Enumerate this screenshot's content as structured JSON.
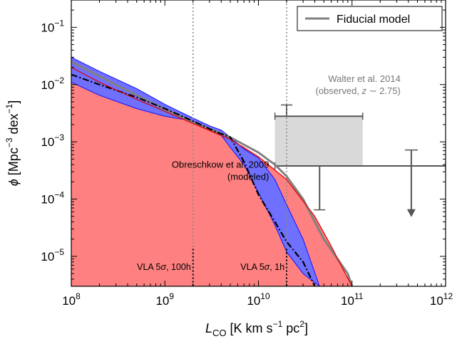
{
  "chart_data": {
    "type": "line",
    "xscale": "log",
    "yscale": "log",
    "xlim": [
      100000000,
      1000000000000
    ],
    "ylim": [
      3e-06,
      0.3
    ],
    "grid": false,
    "legend": {
      "position": "top-right",
      "entries": [
        {
          "label": "Fiducial model",
          "color": "#808080"
        }
      ]
    },
    "x_tick_labels": [
      {
        "value": 100000000,
        "base": "10",
        "exp": "8"
      },
      {
        "value": 1000000000,
        "base": "10",
        "exp": "9"
      },
      {
        "value": 10000000000,
        "base": "10",
        "exp": "10"
      },
      {
        "value": 100000000000,
        "base": "10",
        "exp": "11"
      },
      {
        "value": 1000000000000,
        "base": "10",
        "exp": "12"
      }
    ],
    "y_tick_labels": [
      {
        "value": 1e-05,
        "base": "10",
        "exp": "−5"
      },
      {
        "value": 0.0001,
        "base": "10",
        "exp": "−4"
      },
      {
        "value": 0.001,
        "base": "10",
        "exp": "−3"
      },
      {
        "value": 0.01,
        "base": "10",
        "exp": "−2"
      },
      {
        "value": 0.1,
        "base": "10",
        "exp": "−1"
      }
    ],
    "xlabel": {
      "main": "L",
      "sub": "CO",
      "rest": " [K km s",
      "sup1": "−1",
      "rest2": " pc",
      "sup2": "2",
      "end": "]"
    },
    "ylabel": {
      "phi": "ϕ",
      "pre": " [Mpc",
      "sup1": "−3",
      "mid": " dex",
      "sup2": "−1",
      "end": "]"
    },
    "series": [
      {
        "name": "Fiducial model",
        "style": "solid",
        "color": "#808080",
        "x": [
          100000000,
          200000000,
          500000000,
          1000000000,
          2000000000,
          5000000000,
          10000000000,
          15000000000,
          20000000000,
          30000000000,
          50000000000,
          70000000000,
          90000000000,
          100000000000
        ],
        "y": [
          0.025,
          0.014,
          0.0065,
          0.0037,
          0.0022,
          0.0012,
          0.00065,
          0.0004,
          0.00025,
          0.0001,
          2e-05,
          9e-06,
          5e-06,
          3e-06
        ]
      },
      {
        "style": "dashdot",
        "color": "#000000",
        "x": [
          100000000,
          200000000,
          500000000,
          1000000000,
          2000000000,
          3500000000,
          5000000000,
          7000000000,
          10000000000,
          15000000000,
          20000000000,
          30000000000,
          40000000000
        ],
        "y": [
          0.015,
          0.01,
          0.006,
          0.0038,
          0.0023,
          0.0015,
          0.0012,
          0.00045,
          0.00012,
          4e-05,
          1.8e-05,
          8e-06,
          3e-06
        ]
      },
      {
        "style": "solid",
        "color": "#e00000",
        "x": [
          100000000,
          200000000,
          500000000,
          1000000000,
          2000000000,
          5000000000,
          10000000000,
          20000000000,
          40000000000,
          60000000000,
          80000000000,
          100000000000
        ],
        "y": [
          0.02,
          0.011,
          0.0055,
          0.0034,
          0.0021,
          0.0011,
          0.00055,
          0.00022,
          5e-05,
          1.5e-05,
          6e-06,
          3e-06
        ]
      }
    ],
    "bands": [
      {
        "name": "Obreschkow et al. 2009 (modeled)",
        "color": "#ff8080",
        "edge": "#e00000",
        "x": [
          100000000,
          200000000,
          500000000,
          1000000000,
          2000000000,
          3000000000,
          5000000000,
          7000000000,
          10000000000,
          20000000000,
          40000000000,
          60000000000,
          80000000000,
          100000000000
        ],
        "lower": [
          3e-06,
          3e-06,
          3e-06,
          3e-06,
          3e-06,
          3e-06,
          3e-06,
          3e-06,
          3e-06,
          3e-06,
          3e-06,
          3e-06,
          3e-06,
          3e-06
        ],
        "upper": [
          0.02,
          0.011,
          0.0055,
          0.0034,
          0.0021,
          0.0016,
          0.0011,
          0.0008,
          0.00055,
          0.00022,
          5e-05,
          1.5e-05,
          6e-06,
          3e-06
        ]
      },
      {
        "color": "#7070ff",
        "edge": "#1010ff",
        "x": [
          100000000,
          200000000,
          500000000,
          1000000000,
          2000000000,
          3000000000,
          4000000000,
          5000000000,
          7000000000,
          10000000000,
          15000000000,
          20000000000,
          30000000000,
          45000000000
        ],
        "lower": [
          0.011,
          0.0065,
          0.0038,
          0.0028,
          0.0023,
          0.0017,
          0.0013,
          0.0008,
          0.0004,
          0.00013,
          3.5e-05,
          1.2e-05,
          5e-06,
          3e-06
        ],
        "upper": [
          0.03,
          0.017,
          0.0085,
          0.0045,
          0.0026,
          0.0019,
          0.0016,
          0.0012,
          0.00075,
          0.00052,
          0.00022,
          8e-05,
          2e-05,
          3e-06
        ]
      }
    ],
    "verticals": [
      {
        "x": 2000000000,
        "ymin": 3e-06,
        "ymax": 0.3,
        "style": "dotted",
        "color": "#888888"
      },
      {
        "x": 20000000000,
        "ymin": 3e-06,
        "ymax": 0.3,
        "style": "dotted",
        "color": "#888888"
      },
      {
        "x": 2000000000,
        "ymin": 3e-06,
        "ymax": 1.35e-05,
        "style": "dotted",
        "color": "#000000"
      },
      {
        "x": 20000000000,
        "ymin": 3e-06,
        "ymax": 1.35e-05,
        "style": "dotted",
        "color": "#000000"
      }
    ],
    "observations": {
      "name": "Walter et al. 2014",
      "box": {
        "x0": 15000000000,
        "x1": 130000000000,
        "y0": 0.00038,
        "y1": 0.0028,
        "color": "#d9d9d9"
      },
      "points": [
        {
          "x": 20000000000,
          "y": 0.0028,
          "xerr": [
            15000000000,
            130000000000
          ],
          "yerr": [
            0.0028,
            0.0044
          ]
        },
        {
          "x": 45000000000,
          "y": 0.00038,
          "xerr": [
            15000000000,
            1000000000000
          ],
          "yerr": [
            6.5e-05,
            0.00038
          ]
        }
      ],
      "upper_limit": {
        "x": 430000000000,
        "y": 0.00072,
        "arrow_to": 5e-05
      },
      "color": "#555555"
    },
    "annotations": [
      {
        "line1": "Walter et al. 2014",
        "line2_pre": "(observed, ",
        "line2_z": "z",
        "line2_post": " ∼ 2.75)",
        "x": 330000000000,
        "y": 0.0088,
        "anchor": "end",
        "color": "#777777"
      },
      {
        "line1": "Obreschkow et al. 2009",
        "line2": "(modeled)",
        "x": 13000000000,
        "y": 0.00028,
        "anchor": "end",
        "color": "#000000"
      },
      {
        "label_pre": "VLA 5",
        "label_sigma": "σ",
        "label_post": ", 100h",
        "x": 1900000000,
        "y": 5.8e-06,
        "anchor": "end",
        "color": "#000000"
      },
      {
        "label_pre": "VLA 5",
        "label_sigma": "σ",
        "label_post": ", 1h",
        "x": 19000000000,
        "y": 5.8e-06,
        "anchor": "end",
        "color": "#000000"
      }
    ]
  }
}
